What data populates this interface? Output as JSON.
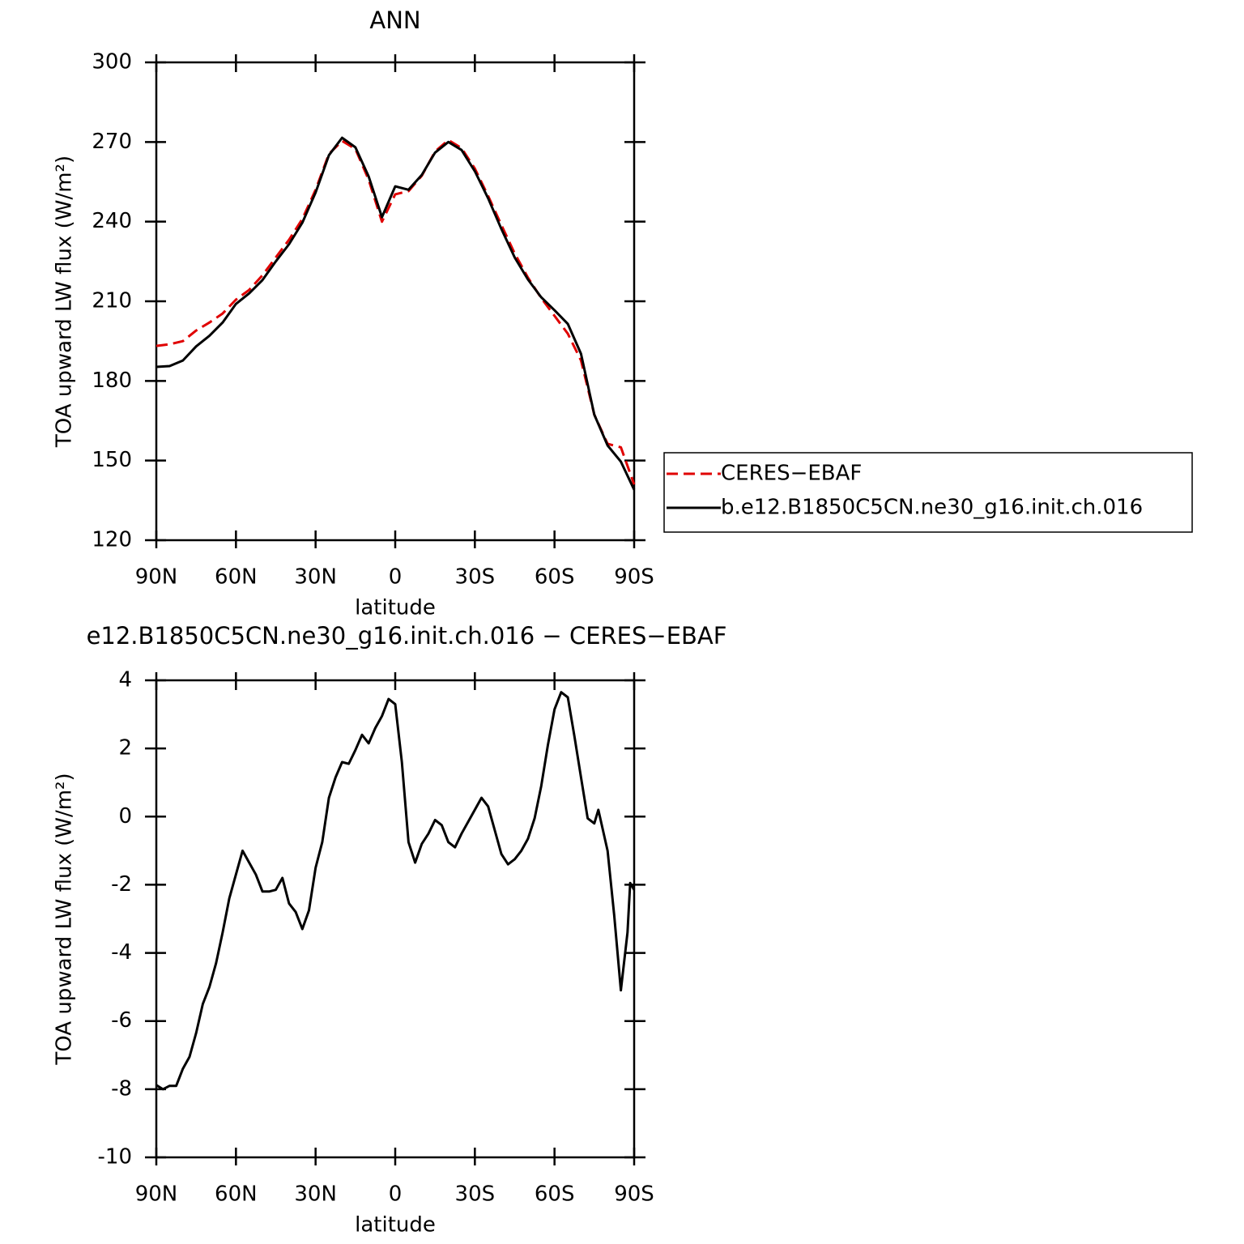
{
  "chart_data": [
    {
      "type": "line",
      "title": "ANN",
      "xlabel": "latitude",
      "ylabel": "TOA upward LW flux (W/m²)",
      "x": [
        90,
        85,
        80,
        75,
        70,
        65,
        60,
        55,
        50,
        45,
        40,
        35,
        30,
        25,
        20,
        15,
        10,
        5,
        0,
        -5,
        -10,
        -15,
        -20,
        -25,
        -30,
        -35,
        -40,
        -45,
        -50,
        -55,
        -60,
        -65,
        -70,
        -75,
        -80,
        -85,
        -90
      ],
      "series": [
        {
          "name": "CERES−EBAF",
          "color": "#e00000",
          "linestyle": "dashed",
          "values": [
            193.2,
            193.8,
            195,
            199,
            202,
            205.4,
            210.6,
            214.3,
            219.8,
            226.5,
            233.2,
            241,
            252,
            265.5,
            270.4,
            267.4,
            255.8,
            240,
            250.3,
            251.5,
            257.3,
            266.4,
            270.7,
            267.7,
            260,
            249.7,
            238.7,
            228,
            218.9,
            211.2,
            204.5,
            197.8,
            187.7,
            167.3,
            156.3,
            155,
            141
          ]
        },
        {
          "name": "b.e12.B1850C5CN.ne30_g16.init.ch.016",
          "color": "#000000",
          "linestyle": "solid",
          "values": [
            185.3,
            185.6,
            187.7,
            193,
            197,
            202,
            209,
            213,
            218,
            225,
            231.5,
            239.6,
            251,
            265,
            271.6,
            268,
            257,
            241.7,
            253.3,
            252,
            257.6,
            266,
            270,
            267,
            259,
            248.8,
            237.2,
            226.5,
            218.2,
            211.5,
            206.6,
            201.5,
            190.2,
            167.3,
            155.7,
            149.6,
            139
          ]
        }
      ],
      "xlim": [
        90,
        -90
      ],
      "ylim": [
        120,
        300
      ],
      "xticks": [
        {
          "value": 90,
          "label": "90N"
        },
        {
          "value": 60,
          "label": "60N"
        },
        {
          "value": 30,
          "label": "30N"
        },
        0,
        {
          "value": -30,
          "label": "30S"
        },
        {
          "value": -60,
          "label": "60S"
        },
        {
          "value": -90,
          "label": "90S"
        }
      ],
      "yticks": [
        120,
        150,
        180,
        210,
        240,
        270,
        300
      ],
      "legend": "right"
    },
    {
      "type": "line",
      "title": "e12.B1850C5CN.ne30_g16.init.ch.016 − CERES−EBAF",
      "xlabel": "latitude",
      "ylabel": "TOA upward LW flux (W/m²)",
      "x": [
        90,
        87.5,
        85,
        82.5,
        80,
        77.5,
        75,
        72.5,
        70,
        67.5,
        65,
        62.5,
        60,
        57.5,
        55,
        52.5,
        50,
        47.5,
        45,
        42.5,
        40,
        37.5,
        35,
        32.5,
        30,
        27.5,
        25,
        22.5,
        20,
        17.5,
        15,
        12.5,
        10,
        7.5,
        5,
        2.5,
        0,
        -2.5,
        -5,
        -7.5,
        -10,
        -12.5,
        -15,
        -17.5,
        -20,
        -22.5,
        -25,
        -27.5,
        -30,
        -32.5,
        -35,
        -37.5,
        -40,
        -42.5,
        -45,
        -47.5,
        -50,
        -52.5,
        -55,
        -57.5,
        -60,
        -62.5,
        -65,
        -67.5,
        -70,
        -72.5,
        -75,
        -76.5,
        -80,
        -82.5,
        -85,
        -87.5,
        -88.5,
        -90
      ],
      "series": [
        {
          "color": "#000000",
          "linestyle": "solid",
          "values": [
            -7.88,
            -8.0,
            -7.9,
            -7.9,
            -7.4,
            -7.05,
            -6.35,
            -5.5,
            -5.0,
            -4.3,
            -3.4,
            -2.4,
            -1.7,
            -1.0,
            -1.35,
            -1.7,
            -2.2,
            -2.2,
            -2.15,
            -1.8,
            -2.55,
            -2.8,
            -3.3,
            -2.75,
            -1.5,
            -0.75,
            0.55,
            1.15,
            1.6,
            1.55,
            1.95,
            2.4,
            2.15,
            2.6,
            2.95,
            3.45,
            3.3,
            1.6,
            -0.75,
            -1.35,
            -0.8,
            -0.5,
            -0.1,
            -0.25,
            -0.75,
            -0.9,
            -0.5,
            -0.15,
            0.2,
            0.55,
            0.3,
            -0.4,
            -1.1,
            -1.4,
            -1.25,
            -1.0,
            -0.65,
            -0.05,
            0.9,
            2.1,
            3.15,
            3.65,
            3.5,
            2.35,
            1.15,
            -0.05,
            -0.2,
            0.2,
            -1.0,
            -2.9,
            -5.1,
            -3.4,
            -1.95,
            -2.15
          ]
        }
      ],
      "xlim": [
        90,
        -90
      ],
      "ylim": [
        -10,
        4
      ],
      "xticks": [
        {
          "value": 90,
          "label": "90N"
        },
        {
          "value": 60,
          "label": "60N"
        },
        {
          "value": 30,
          "label": "30N"
        },
        0,
        {
          "value": -30,
          "label": "30S"
        },
        {
          "value": -60,
          "label": "60S"
        },
        {
          "value": -90,
          "label": "90S"
        }
      ],
      "yticks": [
        -10,
        -8,
        -6,
        -4,
        -2,
        0,
        2,
        4
      ]
    }
  ]
}
